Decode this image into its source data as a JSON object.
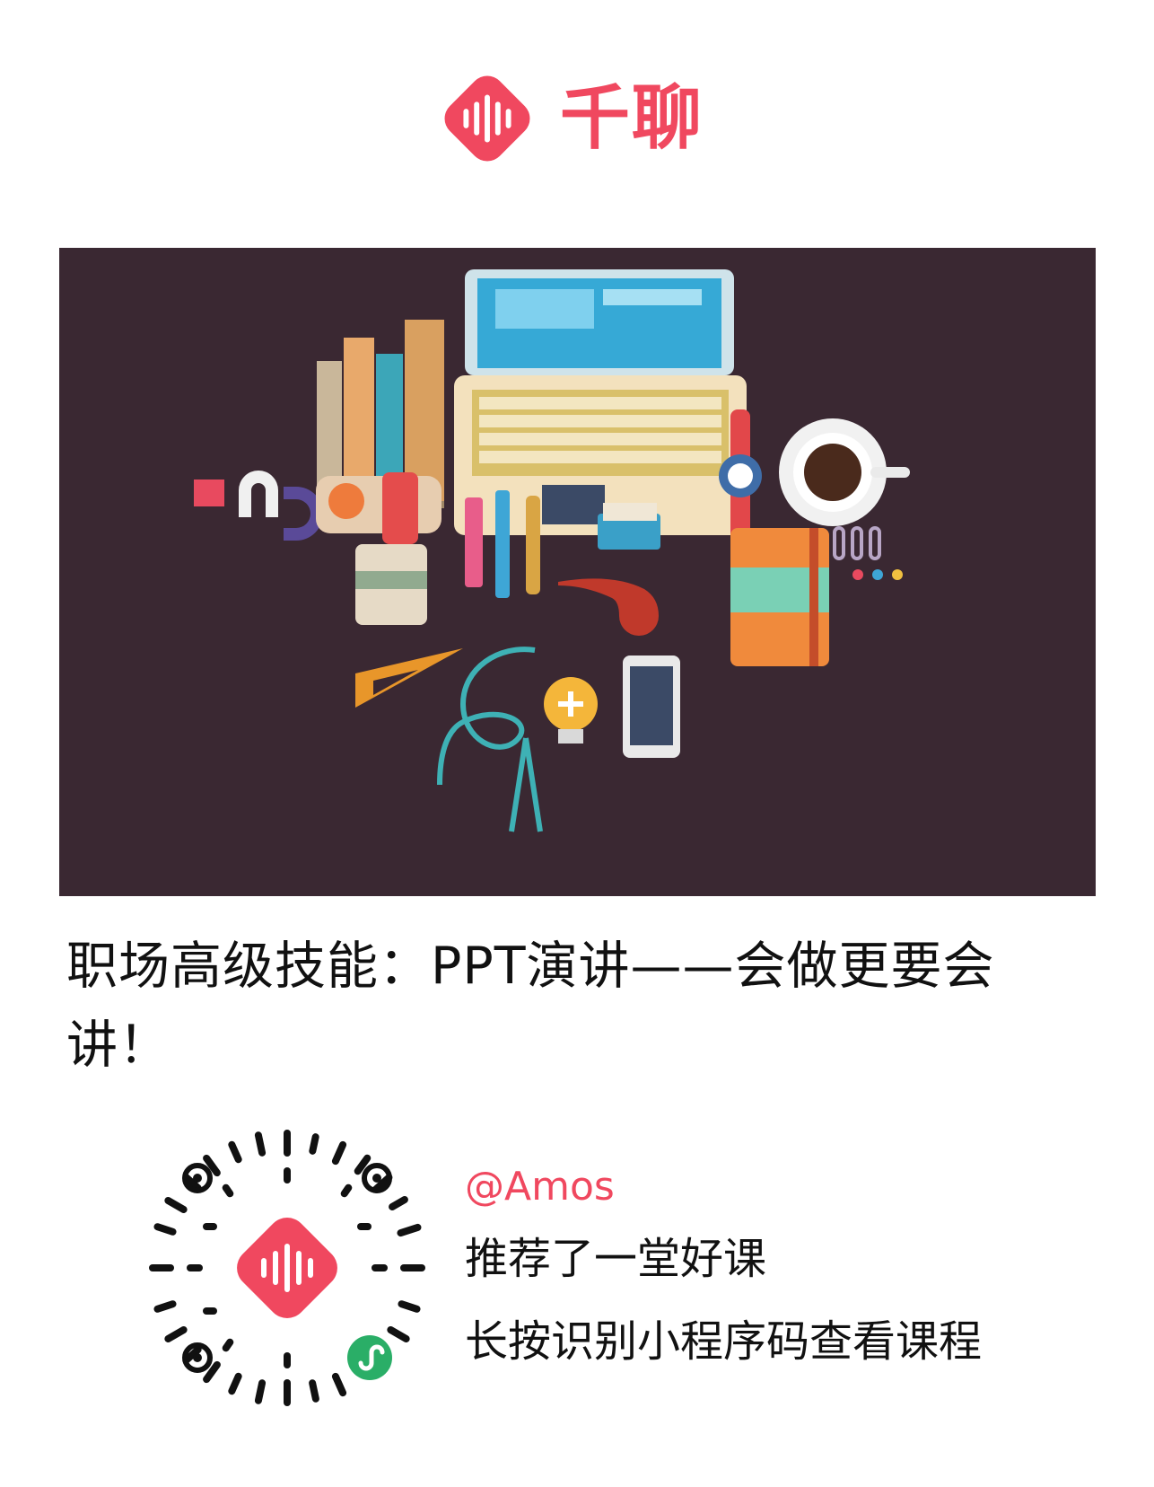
{
  "brand": {
    "name": "千聊",
    "logo_icon": "qianliao-soundwave-logo-icon",
    "color": "#f0485f"
  },
  "banner": {
    "illustration": "office-supplies-illustration"
  },
  "course": {
    "title": "职场高级技能：PPT演讲——会做更要会讲！"
  },
  "share": {
    "user": "@Amos",
    "recommend_text": "推荐了一堂好课",
    "hint_text": "长按识别小程序码查看课程",
    "qr_icon": "mini-program-code-icon",
    "badge_icon": "mini-program-badge-icon"
  }
}
